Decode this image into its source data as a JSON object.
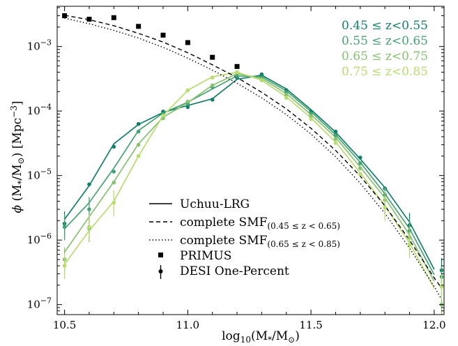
{
  "chart_data": {
    "type": "line",
    "title": "",
    "xlabel": "log10(M*/M☉)",
    "ylabel": "φ (M*/M☉) [Mpc^-3]",
    "xlim": [
      10.47,
      12.04
    ],
    "ylim": [
      7e-08,
      0.0042
    ],
    "yscale": "log",
    "grid": false,
    "xticks": [
      10.5,
      11.0,
      11.5,
      12.0
    ],
    "xtick_labels": [
      "10.5",
      "11.0",
      "11.5",
      "12.0"
    ],
    "yticks": [
      1e-07,
      1e-06,
      1e-05,
      0.0001,
      0.001
    ],
    "ytick_labels": [
      "10^-7",
      "10^-6",
      "10^-5",
      "10^-4",
      "10^-3"
    ],
    "colors": {
      "z1": "#11806a",
      "z2": "#45a371",
      "z3": "#86c26f",
      "z4": "#b6dd6c",
      "ref": "#000000"
    },
    "series": [
      {
        "name": "0.45 ≤ z<0.55",
        "color_key": "z1",
        "style": "solid",
        "x": [
          10.5,
          10.6,
          10.7,
          10.8,
          10.9,
          11.0,
          11.1,
          11.2,
          11.3,
          11.4,
          11.5,
          11.6,
          11.7,
          11.8,
          11.9,
          12.0
        ],
        "values": [
          2.1e-06,
          7e-06,
          3.1e-05,
          6.2e-05,
          9.5e-05,
          0.000122,
          0.000155,
          0.00031,
          0.00036,
          0.00022,
          0.000105,
          4.7e-05,
          1.8e-05,
          6.5e-06,
          1.9e-06,
          3.5e-07
        ]
      },
      {
        "name": "0.55 ≤ z<0.65",
        "color_key": "z2",
        "style": "solid",
        "x": [
          10.5,
          10.6,
          10.7,
          10.8,
          10.9,
          11.0,
          11.1,
          11.2,
          11.3,
          11.4,
          11.5,
          11.6,
          11.7,
          11.8,
          11.9,
          12.0
        ],
        "values": [
          1.5e-06,
          3.8e-06,
          1.3e-05,
          5e-05,
          9.3e-05,
          0.000137,
          0.00022,
          0.00035,
          0.00034,
          0.000205,
          9.8e-05,
          4.3e-05,
          1.6e-05,
          5.2e-06,
          1.5e-06,
          2.9e-07
        ]
      },
      {
        "name": "0.65 ≤ z<0.75",
        "color_key": "z3",
        "style": "solid",
        "x": [
          10.5,
          10.6,
          10.7,
          10.8,
          10.9,
          11.0,
          11.1,
          11.2,
          11.3,
          11.4,
          11.5,
          11.6,
          11.7,
          11.8,
          11.9,
          12.0
        ],
        "values": [
          6.5e-07,
          2.3e-06,
          8e-06,
          3.1e-05,
          8e-05,
          0.000135,
          0.00025,
          0.00038,
          0.00032,
          0.000185,
          8.8e-05,
          3.9e-05,
          1.35e-05,
          4.5e-06,
          1.2e-06,
          2.3e-07
        ]
      },
      {
        "name": "0.75 ≤ z<0.85",
        "color_key": "z4",
        "style": "solid",
        "x": [
          10.5,
          10.6,
          10.7,
          10.8,
          10.9,
          11.0,
          11.1,
          11.2,
          11.3,
          11.4,
          11.5,
          11.6,
          11.7,
          11.8,
          11.9,
          12.0
        ],
        "values": [
          4.2e-07,
          1.4e-06,
          4e-06,
          2e-05,
          8.5e-05,
          0.00021,
          0.00034,
          0.0004,
          0.0003,
          0.000165,
          7.8e-05,
          3.3e-05,
          1.1e-05,
          3.4e-06,
          9e-07,
          1.8e-07
        ]
      },
      {
        "name": "complete SMF(0.45≤z<0.65)",
        "color_key": "ref",
        "style": "dashed",
        "x": [
          10.5,
          10.6,
          10.7,
          10.8,
          10.9,
          11.0,
          11.1,
          11.2,
          11.3,
          11.4,
          11.5,
          11.6,
          11.7,
          11.8,
          11.9,
          12.0,
          12.03
        ],
        "values": [
          0.00305,
          0.0026,
          0.0021,
          0.0016,
          0.00117,
          0.0008,
          0.00052,
          0.00033,
          0.000195,
          0.000108,
          5.4e-05,
          2.45e-05,
          9.8e-06,
          3.4e-06,
          1e-06,
          2.6e-07,
          1.8e-07
        ]
      },
      {
        "name": "complete SMF(0.65≤z<0.85)",
        "color_key": "ref",
        "style": "dotted",
        "x": [
          10.5,
          10.6,
          10.7,
          10.8,
          10.9,
          11.0,
          11.1,
          11.2,
          11.3,
          11.4,
          11.5,
          11.6,
          11.7,
          11.8,
          11.9,
          12.0,
          12.03
        ],
        "values": [
          0.00275,
          0.00225,
          0.00178,
          0.00135,
          0.00097,
          0.00066,
          0.00043,
          0.00027,
          0.00016,
          8.8e-05,
          4.4e-05,
          1.95e-05,
          7.6e-06,
          2.6e-06,
          7.5e-07,
          1.9e-07,
          1.2e-07
        ]
      }
    ],
    "primus_points": {
      "name": "PRIMUS",
      "color_key": "ref",
      "x": [
        10.5,
        10.6,
        10.7,
        10.8,
        10.9,
        11.0,
        11.1,
        11.2
      ],
      "values": [
        0.003,
        0.00265,
        0.0028,
        0.00205,
        0.0015,
        0.00115,
        0.00068,
        0.00049
      ]
    },
    "desi_points": [
      {
        "color_key": "z1",
        "x": [
          10.5,
          10.6,
          10.7,
          10.8,
          10.9,
          11.0,
          11.1,
          11.2,
          11.3,
          11.4,
          11.5,
          11.6,
          11.7,
          11.8,
          11.9,
          12.03
        ],
        "values": [
          1.8e-06,
          7.3e-06,
          2.8e-05,
          6.3e-05,
          9.8e-05,
          0.000115,
          0.00015,
          0.00033,
          0.00037,
          0.00021,
          9.8e-05,
          4.8e-05,
          1.9e-05,
          6.3e-06,
          1.7e-06,
          3.4e-07
        ]
      },
      {
        "color_key": "z2",
        "x": [
          10.5,
          10.6,
          10.7,
          10.8,
          10.9,
          11.0,
          11.1,
          11.2,
          11.3,
          11.4,
          11.5,
          11.6,
          11.7,
          11.8,
          11.9,
          12.03
        ],
        "values": [
          1.6e-06,
          3e-06,
          1.15e-05,
          4.8e-05,
          9e-05,
          0.00013,
          0.000235,
          0.00035,
          0.00033,
          0.000195,
          9.2e-05,
          4.2e-05,
          1.55e-05,
          5e-06,
          1.4e-06,
          2.7e-07
        ]
      },
      {
        "color_key": "z3",
        "x": [
          10.5,
          10.6,
          10.7,
          10.8,
          10.9,
          11.0,
          11.1,
          11.2,
          11.3,
          11.4,
          11.5,
          11.6,
          11.7,
          11.8,
          11.9,
          12.03
        ],
        "values": [
          5e-07,
          1.5e-06,
          7.8e-06,
          3e-05,
          7.7e-05,
          0.00014,
          0.00025,
          0.00039,
          0.00031,
          0.00018,
          8.4e-05,
          3.7e-05,
          1.3e-05,
          4.2e-06,
          1.1e-06,
          1e-07
        ]
      },
      {
        "color_key": "z4",
        "x": [
          10.5,
          10.6,
          10.7,
          10.8,
          10.9,
          11.0,
          11.1,
          11.2,
          11.3,
          11.4,
          11.5,
          11.6,
          11.7,
          11.8,
          11.9,
          12.03
        ],
        "values": [
          4e-07,
          1.6e-06,
          3.8e-06,
          2e-05,
          8.5e-05,
          0.00021,
          0.00033,
          0.0004,
          0.0003,
          0.00016,
          7.5e-05,
          3.2e-05,
          1.05e-05,
          3.2e-06,
          8.5e-07,
          1.9e-07
        ]
      }
    ],
    "redshift_labels": [
      "0.45 ≤ z<0.55",
      "0.55 ≤ z<0.65",
      "0.65 ≤ z<0.75",
      "0.75 ≤ z<0.85"
    ],
    "legend": {
      "placement": "lower-left",
      "entries": [
        {
          "label": "Uchuu-LRG",
          "marker": "solid-line"
        },
        {
          "label": "complete SMF",
          "subscript": "(0.45 ≤ z < 0.65)",
          "marker": "dashed-line"
        },
        {
          "label": "complete SMF",
          "subscript": "(0.65 ≤ z < 0.85)",
          "marker": "dotted-line"
        },
        {
          "label": "PRIMUS",
          "marker": "square"
        },
        {
          "label": "DESI One-Percent",
          "marker": "errorbar-point"
        }
      ]
    }
  }
}
